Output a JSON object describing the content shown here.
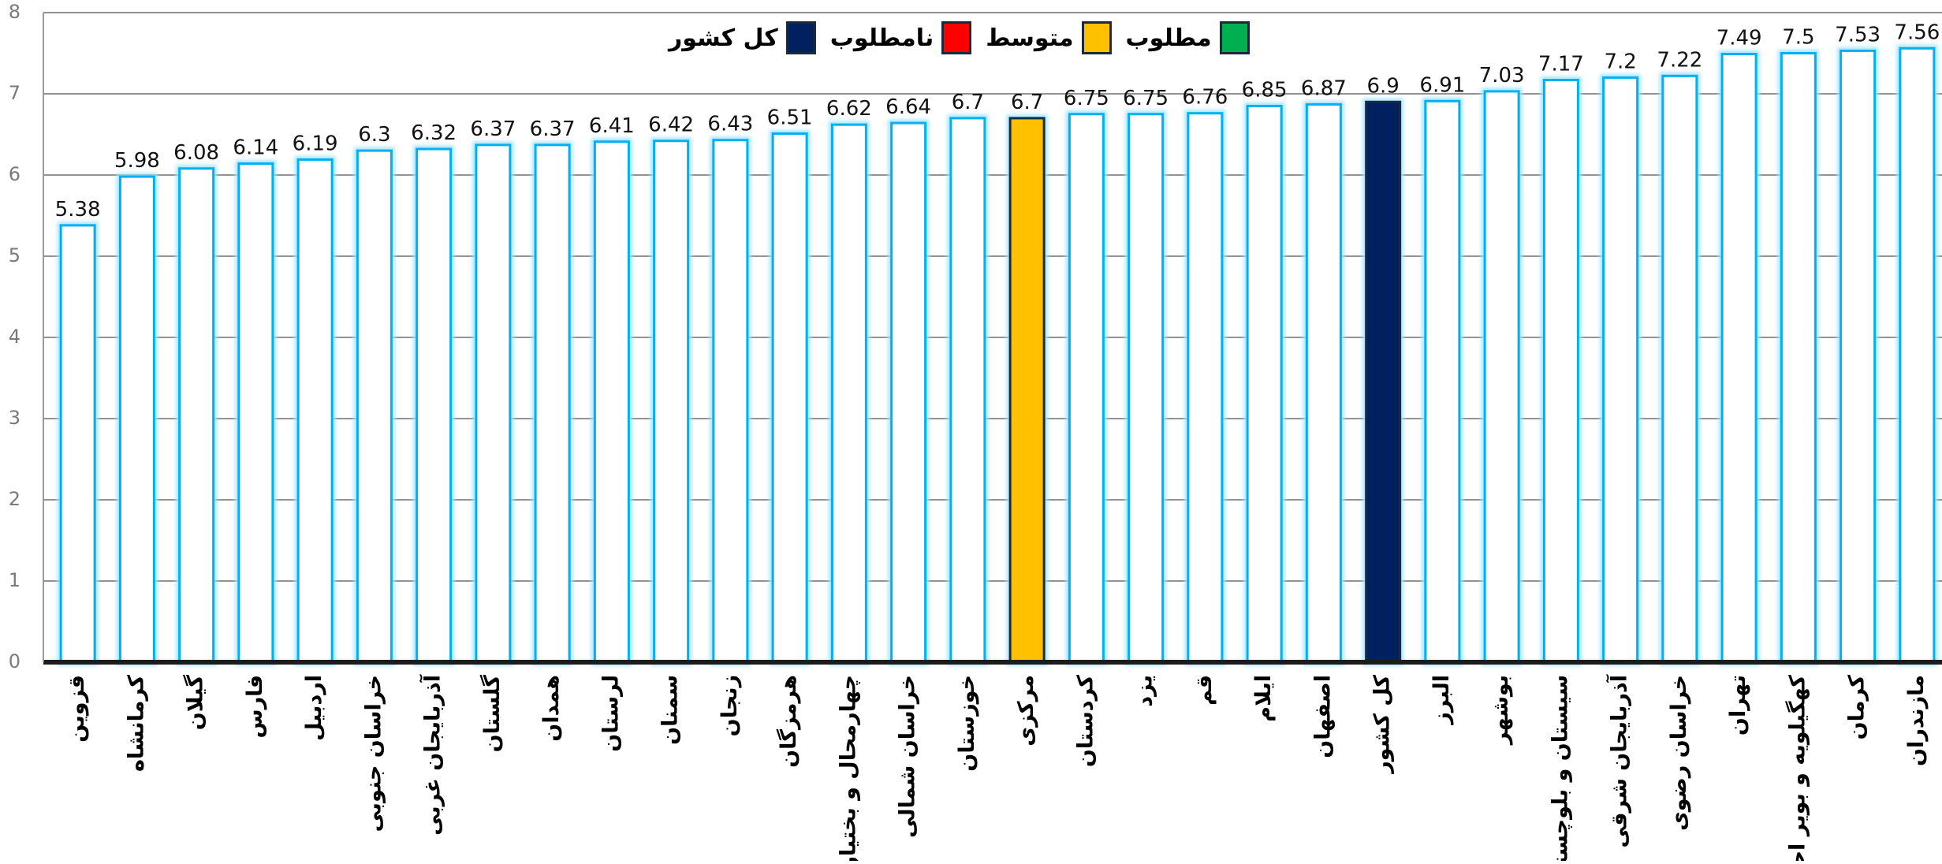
{
  "chart_data": {
    "type": "bar",
    "categories": [
      "قزوین",
      "کرمانشاه",
      "گیلان",
      "فارس",
      "اردبیل",
      "خراسان جنوبی",
      "آذربایجان غربی",
      "گلستان",
      "همدان",
      "لرستان",
      "سمنان",
      "زنجان",
      "هرمزگان",
      "چهارمحال و بختیاری",
      "خراسان شمالی",
      "خوزستان",
      "مرکزی",
      "کردستان",
      "یزد",
      "قم",
      "ایلام",
      "اصفهان",
      "کل کشور",
      "البرز",
      "بوشهر",
      "سیستان و بلوچستان",
      "آذربایجان شرقی",
      "خراسان رضوی",
      "تهران",
      "کهگیلویه و بویر احمد",
      "کرمان",
      "مازندران"
    ],
    "values": [
      5.38,
      5.98,
      6.08,
      6.14,
      6.19,
      6.3,
      6.32,
      6.37,
      6.37,
      6.41,
      6.42,
      6.43,
      6.51,
      6.62,
      6.64,
      6.7,
      6.7,
      6.75,
      6.75,
      6.76,
      6.85,
      6.87,
      6.9,
      6.91,
      7.03,
      7.17,
      7.2,
      7.22,
      7.49,
      7.5,
      7.53,
      7.56
    ],
    "value_labels": [
      "5.38",
      "5.98",
      "6.08",
      "6.14",
      "6.19",
      "6.3",
      "6.32",
      "6.37",
      "6.37",
      "6.41",
      "6.42",
      "6.43",
      "6.51",
      "6.62",
      "6.64",
      "6.7",
      "6.7",
      "6.75",
      "6.75",
      "6.76",
      "6.85",
      "6.87",
      "6.9",
      "6.91",
      "7.03",
      "7.17",
      "7.2",
      "7.22",
      "7.49",
      "7.5",
      "7.53",
      "7.56"
    ],
    "bar_colors": [
      "#ffffff",
      "#ffffff",
      "#ffffff",
      "#ffffff",
      "#ffffff",
      "#ffffff",
      "#ffffff",
      "#ffffff",
      "#ffffff",
      "#ffffff",
      "#ffffff",
      "#ffffff",
      "#ffffff",
      "#ffffff",
      "#ffffff",
      "#ffffff",
      "#ffc000",
      "#ffffff",
      "#ffffff",
      "#ffffff",
      "#ffffff",
      "#ffffff",
      "#002060",
      "#ffffff",
      "#ffffff",
      "#ffffff",
      "#ffffff",
      "#ffffff",
      "#ffffff",
      "#ffffff",
      "#ffffff",
      "#ffffff"
    ],
    "bar_outline_color": "#00b0f0",
    "ylim": [
      0,
      8
    ],
    "yticks": [
      "0",
      "1",
      "2",
      "3",
      "4",
      "5",
      "6",
      "7",
      "8"
    ],
    "grid": true,
    "legend_position": "top-center",
    "legend": [
      {
        "name": "مطلوب",
        "color": "#00b050"
      },
      {
        "name": "متوسط",
        "color": "#ffc000"
      },
      {
        "name": "نامطلوب",
        "color": "#ff0000"
      },
      {
        "name": "کل کشور",
        "color": "#002060"
      }
    ]
  }
}
